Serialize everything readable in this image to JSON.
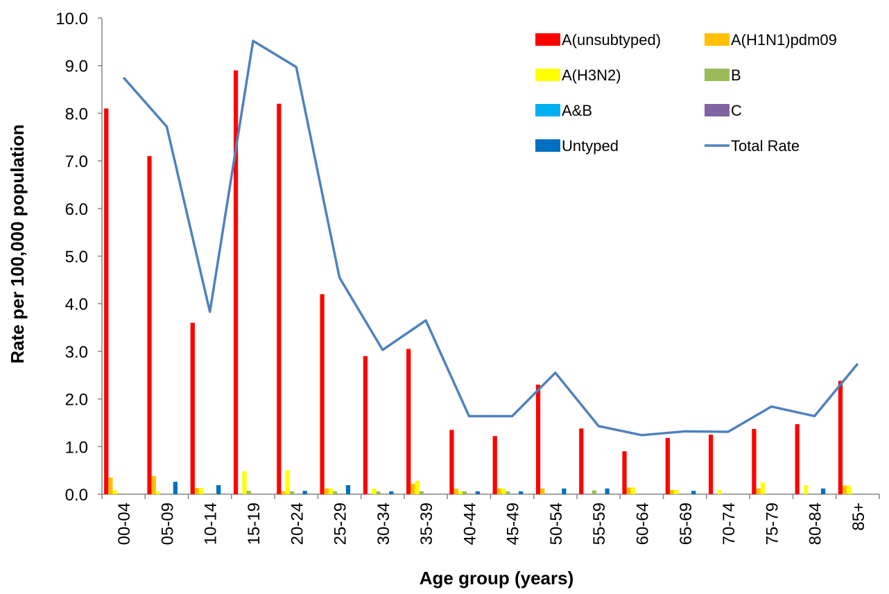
{
  "chart_data": {
    "type": "bar",
    "xlabel": "Age group (years)",
    "ylabel": "Rate per 100,000 population",
    "ylim": [
      0,
      10
    ],
    "yticks": [
      "0.0",
      "1.0",
      "2.0",
      "3.0",
      "4.0",
      "5.0",
      "6.0",
      "7.0",
      "8.0",
      "9.0",
      "10.0"
    ],
    "categories": [
      "00-04",
      "05-09",
      "10-14",
      "15-19",
      "20-24",
      "25-29",
      "30-34",
      "35-39",
      "40-44",
      "45-49",
      "50-54",
      "55-59",
      "60-64",
      "65-69",
      "70-74",
      "75-79",
      "80-84",
      "85+"
    ],
    "legend_position": "top-right",
    "series": [
      {
        "name": "A(unsubtyped)",
        "type": "bar",
        "color": "#ff0000",
        "values": [
          8.1,
          7.1,
          3.6,
          8.9,
          8.2,
          4.2,
          2.9,
          3.05,
          1.35,
          1.22,
          2.3,
          1.38,
          0.9,
          1.18,
          1.25,
          1.37,
          1.47,
          2.38
        ]
      },
      {
        "name": "A(H1N1)pdm09",
        "type": "bar",
        "color": "#ffc000",
        "values": [
          0.35,
          0.38,
          0.13,
          0,
          0.06,
          0.12,
          0,
          0.22,
          0.12,
          0.12,
          0.12,
          0,
          0.14,
          0.09,
          0,
          0.12,
          0,
          0.18
        ]
      },
      {
        "name": "A(H3N2)",
        "type": "bar",
        "color": "#ffff00",
        "values": [
          0.08,
          0.06,
          0.13,
          0.48,
          0.5,
          0.12,
          0.12,
          0.28,
          0.06,
          0.12,
          0,
          0,
          0.14,
          0.09,
          0.09,
          0.25,
          0.19,
          0.18
        ]
      },
      {
        "name": "B",
        "type": "bar",
        "color": "#9bbb59",
        "values": [
          0,
          0,
          0,
          0.07,
          0.06,
          0.06,
          0.06,
          0.06,
          0.06,
          0.06,
          0,
          0.08,
          0,
          0,
          0,
          0,
          0,
          0
        ]
      },
      {
        "name": "A&B",
        "type": "bar",
        "color": "#00b0f0",
        "values": [
          0,
          0,
          0,
          0,
          0,
          0,
          0,
          0,
          0,
          0,
          0,
          0,
          0,
          0,
          0,
          0,
          0,
          0
        ]
      },
      {
        "name": "C",
        "type": "bar",
        "color": "#8064a2",
        "values": [
          0,
          0,
          0,
          0,
          0,
          0,
          0,
          0,
          0,
          0,
          0,
          0,
          0,
          0,
          0,
          0,
          0,
          0
        ]
      },
      {
        "name": "Untyped",
        "type": "bar",
        "color": "#0070c0",
        "values": [
          0,
          0.26,
          0.19,
          0,
          0.07,
          0.19,
          0.06,
          0,
          0.06,
          0.06,
          0.12,
          0.12,
          0,
          0.07,
          0,
          0,
          0.12,
          0
        ]
      },
      {
        "name": "Total Rate",
        "type": "line",
        "color": "#4f81bd",
        "values": [
          8.75,
          7.72,
          3.83,
          9.52,
          8.97,
          4.55,
          3.03,
          3.65,
          1.64,
          1.64,
          2.55,
          1.43,
          1.24,
          1.32,
          1.31,
          1.84,
          1.64,
          2.74
        ]
      }
    ]
  }
}
